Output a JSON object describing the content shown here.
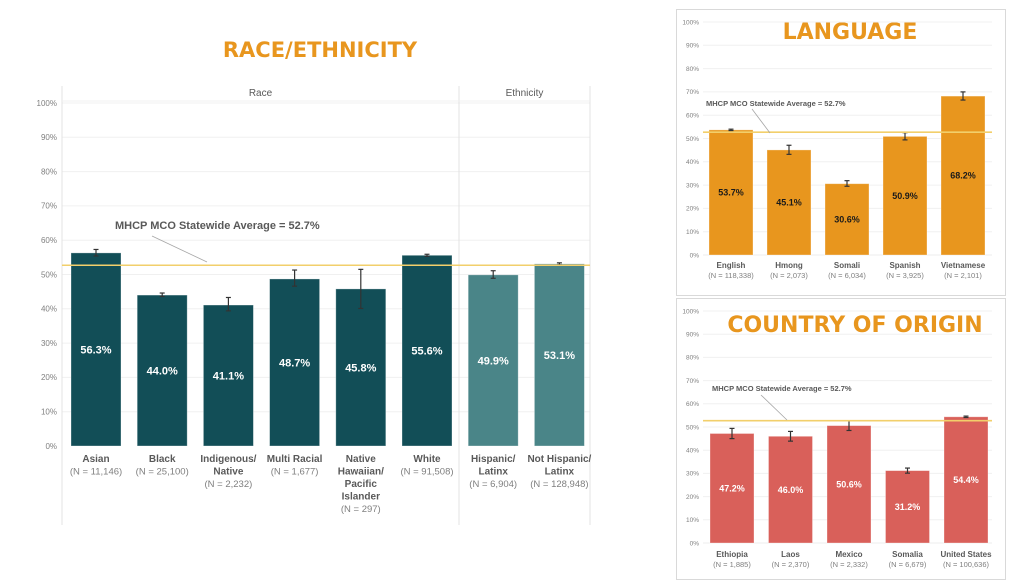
{
  "chart_data": [
    {
      "id": "race",
      "type": "bar",
      "title": "RACE/ETHNICITY",
      "groups": [
        {
          "label": "Race",
          "categories": 6
        },
        {
          "label": "Ethnicity",
          "categories": 2
        }
      ],
      "categories": [
        {
          "name": [
            "Asian"
          ],
          "n": "(N = 11,146)"
        },
        {
          "name": [
            "Black"
          ],
          "n": "(N = 25,100)"
        },
        {
          "name": [
            "Indigenous/",
            "Native"
          ],
          "n": "(N = 2,232)"
        },
        {
          "name": [
            "Multi Racial"
          ],
          "n": "(N = 1,677)"
        },
        {
          "name": [
            "Native",
            "Hawaiian/",
            "Pacific",
            "Islander"
          ],
          "n": "(N = 297)"
        },
        {
          "name": [
            "White"
          ],
          "n": "(N = 91,508)"
        },
        {
          "name": [
            "Hispanic/",
            "Latinx"
          ],
          "n": "(N = 6,904)"
        },
        {
          "name": [
            "Not Hispanic/",
            "Latinx"
          ],
          "n": "(N = 128,948)"
        }
      ],
      "values": [
        56.3,
        44.0,
        41.1,
        48.7,
        45.8,
        55.6,
        49.9,
        53.1
      ],
      "error_low": [
        55.4,
        43.6,
        39.4,
        46.6,
        40.1,
        55.3,
        48.9,
        52.8
      ],
      "error_high": [
        57.3,
        44.6,
        43.3,
        51.3,
        51.5,
        55.9,
        51.1,
        53.4
      ],
      "labels": [
        "56.3%",
        "44.0%",
        "41.1%",
        "48.7%",
        "45.8%",
        "55.6%",
        "49.9%",
        "53.1%"
      ],
      "bar_colors": [
        "#124E57",
        "#124E57",
        "#124E57",
        "#124E57",
        "#124E57",
        "#124E57",
        "#4A8588",
        "#4A8588"
      ],
      "label_color": "#ffffff",
      "yticks": [
        "0%",
        "10%",
        "20%",
        "30%",
        "40%",
        "50%",
        "60%",
        "70%",
        "80%",
        "90%",
        "100%"
      ],
      "ylim": [
        0,
        100
      ],
      "reference_line": {
        "value": 52.7,
        "label": "MHCP MCO Statewide Average = 52.7%",
        "color": "#F2CF6B"
      },
      "grid": true
    },
    {
      "id": "language",
      "type": "bar",
      "title": "LANGUAGE",
      "categories": [
        {
          "name": [
            "English"
          ],
          "n": "(N = 118,338)"
        },
        {
          "name": [
            "Hmong"
          ],
          "n": "(N = 2,073)"
        },
        {
          "name": [
            "Somali"
          ],
          "n": "(N = 6,034)"
        },
        {
          "name": [
            "Spanish"
          ],
          "n": "(N = 3,925)"
        },
        {
          "name": [
            "Vietnamese"
          ],
          "n": "(N = 2,101)"
        }
      ],
      "values": [
        53.7,
        45.1,
        30.6,
        50.9,
        68.2
      ],
      "error_low": [
        53.4,
        43.2,
        29.5,
        49.4,
        66.5
      ],
      "error_high": [
        54.0,
        47.1,
        31.9,
        52.5,
        70.0
      ],
      "labels": [
        "53.7%",
        "45.1%",
        "30.6%",
        "50.9%",
        "68.2%"
      ],
      "bar_colors": [
        "#E8961E",
        "#E8961E",
        "#E8961E",
        "#E8961E",
        "#E8961E"
      ],
      "label_color": "#1a1a1a",
      "yticks": [
        "0%",
        "10%",
        "20%",
        "30%",
        "40%",
        "50%",
        "60%",
        "70%",
        "80%",
        "90%",
        "100%"
      ],
      "ylim": [
        0,
        100
      ],
      "reference_line": {
        "value": 52.7,
        "label": "MHCP MCO Statewide Average = 52.7%",
        "color": "#F2CF6B"
      },
      "grid": true
    },
    {
      "id": "country",
      "type": "bar",
      "title": "COUNTRY OF ORIGIN",
      "categories": [
        {
          "name": [
            "Ethiopia"
          ],
          "n": "(N = 1,885)"
        },
        {
          "name": [
            "Laos"
          ],
          "n": "(N = 2,370)"
        },
        {
          "name": [
            "Mexico"
          ],
          "n": "(N = 2,332)"
        },
        {
          "name": [
            "Somalia"
          ],
          "n": "(N = 6,679)"
        },
        {
          "name": [
            "United States"
          ],
          "n": "(N = 100,636)"
        }
      ],
      "values": [
        47.2,
        46.0,
        50.6,
        31.2,
        54.4
      ],
      "error_low": [
        45.0,
        43.9,
        48.5,
        30.1,
        54.1
      ],
      "error_high": [
        49.4,
        48.1,
        52.7,
        32.3,
        54.7
      ],
      "labels": [
        "47.2%",
        "46.0%",
        "50.6%",
        "31.2%",
        "54.4%"
      ],
      "bar_colors": [
        "#D9605A",
        "#D9605A",
        "#D9605A",
        "#D9605A",
        "#D9605A"
      ],
      "label_color": "#ffffff",
      "yticks": [
        "0%",
        "10%",
        "20%",
        "30%",
        "40%",
        "50%",
        "60%",
        "70%",
        "80%",
        "90%",
        "100%"
      ],
      "ylim": [
        0,
        100
      ],
      "reference_line": {
        "value": 52.7,
        "label": "MHCP MCO Statewide Average = 52.7%",
        "color": "#F2CF6B"
      },
      "grid": true
    }
  ]
}
